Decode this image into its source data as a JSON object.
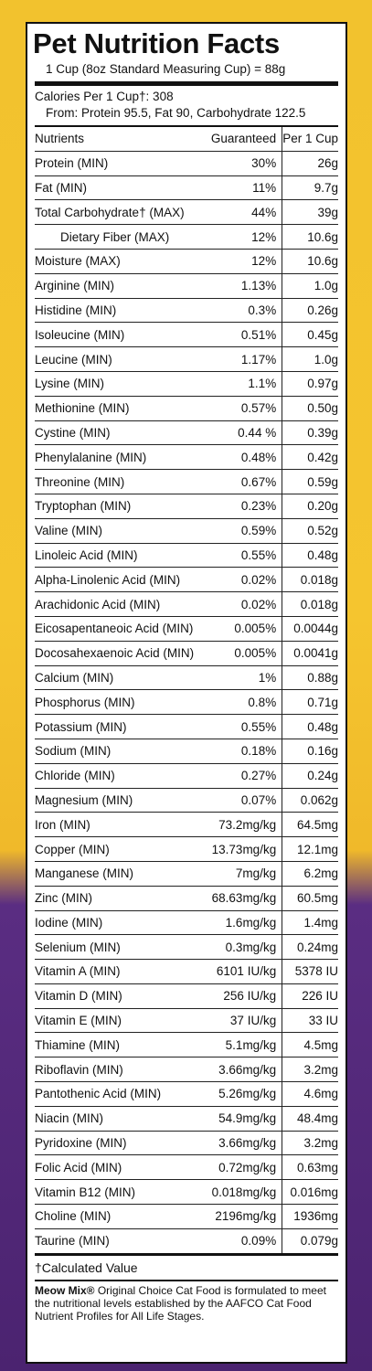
{
  "title": "Pet Nutrition Facts",
  "serving": "1 Cup (8oz Standard Measuring Cup) = 88g",
  "calories_line": "Calories Per 1 Cup†: 308",
  "calories_from": "From: Protein 95.5, Fat 90, Carbohydrate 122.5",
  "headers": {
    "nutrients": "Nutrients",
    "guaranteed": "Guaranteed",
    "per_cup": "Per 1 Cup"
  },
  "rows": [
    {
      "name": "Protein (MIN)",
      "g": "30%",
      "p": "26g"
    },
    {
      "name": "Fat (MIN)",
      "g": "11%",
      "p": "9.7g"
    },
    {
      "name": "Total Carbohydrate† (MAX)",
      "g": "44%",
      "p": "39g"
    },
    {
      "name": "Dietary Fiber (MAX)",
      "g": "12%",
      "p": "10.6g",
      "indent": true
    },
    {
      "name": "Moisture (MAX)",
      "g": "12%",
      "p": "10.6g"
    },
    {
      "name": "Arginine (MIN)",
      "g": "1.13%",
      "p": "1.0g"
    },
    {
      "name": "Histidine (MIN)",
      "g": "0.3%",
      "p": "0.26g"
    },
    {
      "name": "Isoleucine (MIN)",
      "g": "0.51%",
      "p": "0.45g"
    },
    {
      "name": "Leucine (MIN)",
      "g": "1.17%",
      "p": "1.0g"
    },
    {
      "name": "Lysine (MIN)",
      "g": "1.1%",
      "p": "0.97g"
    },
    {
      "name": "Methionine (MIN)",
      "g": "0.57%",
      "p": "0.50g"
    },
    {
      "name": "Cystine (MIN)",
      "g": "0.44 %",
      "p": "0.39g"
    },
    {
      "name": "Phenylalanine (MIN)",
      "g": "0.48%",
      "p": "0.42g"
    },
    {
      "name": "Threonine (MIN)",
      "g": "0.67%",
      "p": "0.59g"
    },
    {
      "name": "Tryptophan (MIN)",
      "g": "0.23%",
      "p": "0.20g"
    },
    {
      "name": "Valine (MIN)",
      "g": "0.59%",
      "p": "0.52g"
    },
    {
      "name": "Linoleic Acid (MIN)",
      "g": "0.55%",
      "p": "0.48g"
    },
    {
      "name": "Alpha-Linolenic Acid (MIN)",
      "g": "0.02%",
      "p": "0.018g"
    },
    {
      "name": "Arachidonic Acid (MIN)",
      "g": "0.02%",
      "p": "0.018g"
    },
    {
      "name": "Eicosapentaneoic Acid (MIN)",
      "g": "0.005%",
      "p": "0.0044g"
    },
    {
      "name": "Docosahexaenoic Acid (MIN)",
      "g": "0.005%",
      "p": "0.0041g"
    },
    {
      "name": "Calcium (MIN)",
      "g": "1%",
      "p": "0.88g"
    },
    {
      "name": "Phosphorus (MIN)",
      "g": "0.8%",
      "p": "0.71g"
    },
    {
      "name": "Potassium (MIN)",
      "g": "0.55%",
      "p": "0.48g"
    },
    {
      "name": "Sodium (MIN)",
      "g": "0.18%",
      "p": "0.16g"
    },
    {
      "name": "Chloride (MIN)",
      "g": "0.27%",
      "p": "0.24g"
    },
    {
      "name": "Magnesium (MIN)",
      "g": "0.07%",
      "p": "0.062g"
    },
    {
      "name": "Iron (MIN)",
      "g": "73.2mg/kg",
      "p": "64.5mg"
    },
    {
      "name": "Copper (MIN)",
      "g": "13.73mg/kg",
      "p": "12.1mg"
    },
    {
      "name": "Manganese (MIN)",
      "g": "7mg/kg",
      "p": "6.2mg"
    },
    {
      "name": "Zinc (MIN)",
      "g": "68.63mg/kg",
      "p": "60.5mg"
    },
    {
      "name": "Iodine (MIN)",
      "g": "1.6mg/kg",
      "p": "1.4mg"
    },
    {
      "name": "Selenium (MIN)",
      "g": "0.3mg/kg",
      "p": "0.24mg"
    },
    {
      "name": "Vitamin A (MIN)",
      "g": "6101 IU/kg",
      "p": "5378 IU"
    },
    {
      "name": "Vitamin D (MIN)",
      "g": "256 IU/kg",
      "p": "226 IU"
    },
    {
      "name": "Vitamin E (MIN)",
      "g": "37 IU/kg",
      "p": "33 IU"
    },
    {
      "name": "Thiamine (MIN)",
      "g": "5.1mg/kg",
      "p": "4.5mg"
    },
    {
      "name": "Riboflavin (MIN)",
      "g": "3.66mg/kg",
      "p": "3.2mg"
    },
    {
      "name": "Pantothenic Acid (MIN)",
      "g": "5.26mg/kg",
      "p": "4.6mg"
    },
    {
      "name": "Niacin (MIN)",
      "g": "54.9mg/kg",
      "p": "48.4mg"
    },
    {
      "name": "Pyridoxine (MIN)",
      "g": "3.66mg/kg",
      "p": "3.2mg"
    },
    {
      "name": "Folic Acid (MIN)",
      "g": "0.72mg/kg",
      "p": "0.63mg"
    },
    {
      "name": "Vitamin B12 (MIN)",
      "g": "0.018mg/kg",
      "p": "0.016mg"
    },
    {
      "name": "Choline (MIN)",
      "g": "2196mg/kg",
      "p": "1936mg"
    },
    {
      "name": "Taurine (MIN)",
      "g": "0.09%",
      "p": "0.079g"
    }
  ],
  "footnote": "†Calculated Value",
  "disclaimer_brand": "Meow Mix®",
  "disclaimer_text": " Original Choice Cat Food is formulated to meet the nutritional levels established by the AAFCO Cat Food Nutrient Profiles for All Life Stages.",
  "colors": {
    "label_bg": "#ffffff",
    "package_yellow": "#f2c22e",
    "package_purple": "#4b2370",
    "rule": "#111111"
  }
}
